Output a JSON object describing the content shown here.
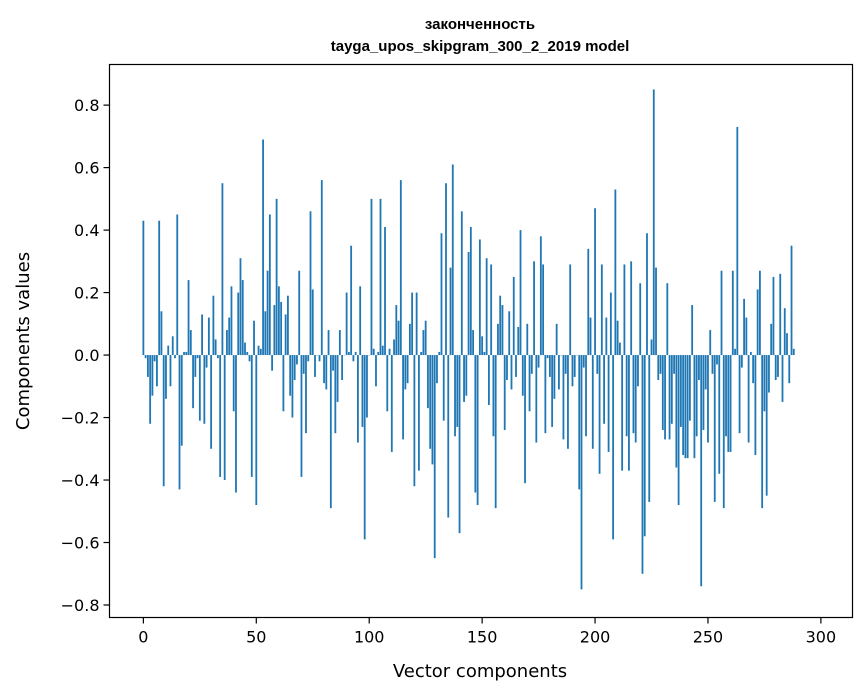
{
  "chart_data": {
    "type": "bar",
    "title": "законченность",
    "subtitle": "tayga_upos_skipgram_300_2_2019 model",
    "xlabel": "Vector components",
    "ylabel": "Components values",
    "xlim": [
      -15,
      314
    ],
    "ylim": [
      -0.84,
      0.93
    ],
    "xticks": [
      0,
      50,
      100,
      150,
      200,
      250,
      300
    ],
    "yticks": [
      -0.8,
      -0.6,
      -0.4,
      -0.2,
      0.0,
      0.2,
      0.4,
      0.6,
      0.8
    ],
    "ytick_labels": [
      "−0.8",
      "−0.6",
      "−0.4",
      "−0.2",
      "0.0",
      "0.2",
      "0.4",
      "0.6",
      "0.8"
    ],
    "bar_color": "#1f77b4",
    "grid": false,
    "values": [
      0.43,
      -0.01,
      -0.07,
      -0.22,
      -0.13,
      -0.02,
      -0.1,
      0.43,
      0.14,
      -0.42,
      -0.14,
      0.03,
      -0.1,
      0.06,
      -0.01,
      0.45,
      -0.43,
      -0.29,
      0.01,
      0.01,
      0.24,
      0.08,
      -0.17,
      -0.07,
      -0.01,
      -0.21,
      0.13,
      -0.22,
      -0.04,
      0.12,
      -0.3,
      0.19,
      0.05,
      -0.01,
      -0.39,
      0.55,
      -0.4,
      0.08,
      0.12,
      0.22,
      -0.18,
      -0.44,
      0.2,
      0.31,
      0.24,
      0.04,
      0.01,
      -0.02,
      -0.39,
      0.11,
      -0.48,
      0.03,
      0.02,
      0.69,
      0.14,
      0.27,
      0.45,
      -0.05,
      0.16,
      0.5,
      0.22,
      0.17,
      -0.18,
      0.13,
      0.19,
      -0.13,
      -0.2,
      -0.08,
      -0.03,
      0.27,
      -0.39,
      -0.06,
      -0.25,
      -0.02,
      0.46,
      0.21,
      -0.07,
      0.0,
      -0.02,
      0.56,
      -0.09,
      -0.11,
      0.08,
      -0.49,
      -0.05,
      -0.25,
      -0.15,
      0.08,
      -0.08,
      0.0,
      0.2,
      0.01,
      0.35,
      -0.02,
      0.01,
      -0.28,
      0.22,
      -0.23,
      -0.59,
      -0.2,
      0.0,
      0.5,
      0.02,
      -0.1,
      0.01,
      0.5,
      0.03,
      0.41,
      -0.18,
      0.02,
      -0.31,
      0.05,
      0.16,
      0.11,
      0.56,
      -0.27,
      -0.11,
      -0.09,
      0.1,
      0.2,
      -0.42,
      0.2,
      -0.37,
      0.01,
      0.08,
      0.11,
      -0.17,
      -0.3,
      -0.35,
      -0.65,
      -0.09,
      0.01,
      0.39,
      -0.21,
      0.55,
      -0.52,
      0.28,
      0.61,
      -0.26,
      -0.23,
      -0.57,
      0.46,
      -0.15,
      -0.13,
      0.33,
      0.41,
      0.08,
      -0.44,
      -0.48,
      0.37,
      0.06,
      0.01,
      0.31,
      -0.16,
      0.29,
      -0.26,
      -0.49,
      0.1,
      0.19,
      0.16,
      -0.24,
      -0.08,
      0.14,
      -0.11,
      0.25,
      -0.07,
      0.09,
      0.4,
      -0.13,
      -0.41,
      0.1,
      -0.18,
      -0.06,
      0.3,
      -0.28,
      -0.04,
      0.38,
      0.29,
      -0.25,
      -0.01,
      -0.07,
      -0.23,
      -0.14,
      0.1,
      -0.11,
      0.0,
      -0.27,
      -0.06,
      -0.3,
      0.29,
      -0.1,
      -0.07,
      0.0,
      -0.43,
      -0.75,
      -0.04,
      -0.26,
      0.34,
      0.12,
      -0.3,
      0.47,
      -0.06,
      -0.38,
      0.29,
      -0.22,
      0.12,
      -0.31,
      0.2,
      -0.59,
      0.53,
      0.11,
      0.04,
      -0.37,
      0.29,
      -0.26,
      -0.37,
      0.3,
      -0.25,
      -0.28,
      -0.1,
      0.23,
      -0.7,
      -0.58,
      0.39,
      -0.47,
      0.05,
      0.85,
      0.28,
      -0.08,
      -0.06,
      -0.24,
      -0.27,
      0.23,
      -0.27,
      -0.22,
      -0.06,
      -0.36,
      -0.48,
      -0.23,
      -0.32,
      -0.33,
      -0.33,
      -0.21,
      0.16,
      -0.33,
      -0.26,
      -0.08,
      -0.74,
      -0.24,
      -0.11,
      -0.28,
      0.08,
      -0.06,
      -0.47,
      -0.03,
      -0.38,
      0.27,
      -0.49,
      -0.26,
      -0.31,
      -0.31,
      0.27,
      0.02,
      0.73,
      -0.25,
      -0.04,
      0.18,
      0.12,
      -0.28,
      0.01,
      -0.09,
      -0.32,
      0.21,
      0.27,
      -0.49,
      -0.18,
      -0.45,
      -0.12,
      0.1,
      0.25,
      -0.08,
      -0.07,
      0.26,
      -0.15,
      0.15,
      0.07,
      -0.09,
      0.35,
      0.02
    ]
  }
}
